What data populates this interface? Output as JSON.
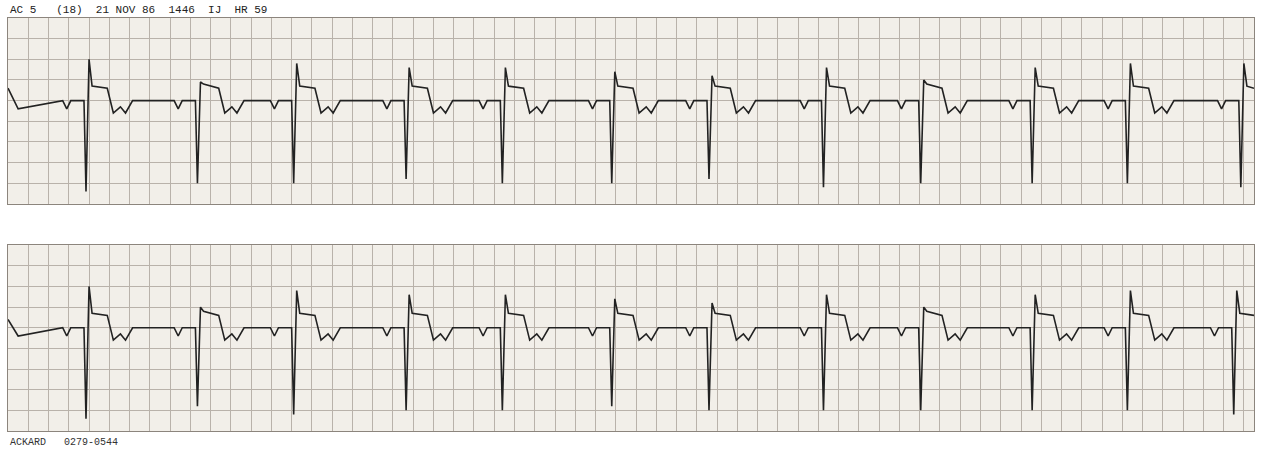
{
  "chart_data": [
    {
      "type": "line",
      "title": "AC 5   (18)  21 NOV 86  1446  IJ  HR 59",
      "color": "#222222",
      "grid": true,
      "tick_labels": false,
      "xlim": [
        0,
        12.3
      ],
      "ylim": [
        -2.5,
        2.0
      ],
      "xticks": [
        0,
        0.2,
        0.4,
        0.6,
        0.8,
        1.0,
        1.2,
        1.4,
        1.6,
        1.8,
        2.0,
        2.2,
        2.4,
        2.6,
        2.8,
        3.0,
        3.2,
        3.4,
        3.6,
        3.8,
        4.0,
        4.2,
        4.4,
        4.6,
        4.8,
        5.0,
        5.2,
        5.4,
        5.6,
        5.8,
        6.0,
        6.2,
        6.4,
        6.6,
        6.8,
        7.0,
        7.2,
        7.4,
        7.6,
        7.8,
        8.0,
        8.2,
        8.4,
        8.6,
        8.8,
        9.0,
        9.2,
        9.4,
        9.6,
        9.8,
        10.0,
        10.2,
        10.4,
        10.6,
        10.8,
        11.0,
        11.2,
        11.4,
        11.6,
        11.8,
        12.0,
        12.2
      ],
      "yticks": [
        -2.5,
        -2.0,
        -1.5,
        -1.0,
        -0.5,
        0,
        0.5,
        1.0,
        1.5,
        2.0
      ],
      "x": [
        0,
        0.1,
        0.54,
        0.58,
        0.62,
        0.75,
        0.77,
        0.8,
        0.83,
        0.98,
        1.04,
        1.11,
        1.16,
        1.23,
        1.64,
        1.68,
        1.72,
        1.85,
        1.87,
        1.9,
        1.93,
        2.08,
        2.14,
        2.21,
        2.26,
        2.33,
        2.59,
        2.63,
        2.67,
        2.8,
        2.82,
        2.85,
        2.88,
        3.03,
        3.09,
        3.16,
        3.21,
        3.28,
        3.7,
        3.74,
        3.78,
        3.91,
        3.93,
        3.96,
        3.99,
        4.14,
        4.2,
        4.27,
        4.32,
        4.39,
        4.65,
        4.69,
        4.73,
        4.86,
        4.88,
        4.91,
        4.94,
        5.09,
        5.15,
        5.22,
        5.27,
        5.34,
        5.73,
        5.77,
        5.81,
        5.94,
        5.96,
        5.99,
        6.02,
        6.17,
        6.23,
        6.3,
        6.35,
        6.42,
        6.69,
        6.73,
        6.77,
        6.9,
        6.92,
        6.95,
        6.98,
        7.13,
        7.19,
        7.26,
        7.31,
        7.38,
        7.82,
        7.86,
        7.9,
        8.03,
        8.05,
        8.08,
        8.11,
        8.26,
        8.32,
        8.39,
        8.44,
        8.51,
        8.78,
        8.82,
        8.86,
        8.99,
        9.01,
        9.04,
        9.07,
        9.22,
        9.28,
        9.35,
        9.4,
        9.47,
        9.88,
        9.92,
        9.96,
        10.09,
        10.11,
        10.14,
        10.17,
        10.32,
        10.38,
        10.45,
        10.5,
        10.57,
        10.82,
        10.86,
        10.9,
        11.03,
        11.05,
        11.08,
        11.11,
        11.26,
        11.32,
        11.39,
        11.44,
        11.51,
        11.94,
        11.98,
        12.02,
        12.15,
        12.17,
        12.2,
        12.23,
        12.3
      ],
      "values": [
        0.3,
        -0.2,
        0,
        -0.2,
        0,
        0,
        -2.2,
        1.0,
        0.35,
        0.3,
        -0.3,
        -0.15,
        -0.3,
        0,
        0,
        -0.2,
        0,
        0,
        -2.0,
        0.45,
        0.4,
        0.3,
        -0.3,
        -0.15,
        -0.3,
        0,
        0,
        -0.2,
        0,
        0,
        -2.0,
        0.9,
        0.35,
        0.3,
        -0.3,
        -0.15,
        -0.3,
        0,
        0,
        -0.2,
        0,
        0,
        -1.9,
        0.8,
        0.35,
        0.3,
        -0.3,
        -0.15,
        -0.3,
        0,
        0,
        -0.2,
        0,
        0,
        -2.0,
        0.8,
        0.35,
        0.3,
        -0.3,
        -0.15,
        -0.3,
        0,
        0,
        -0.2,
        0,
        0,
        -2.0,
        0.7,
        0.35,
        0.3,
        -0.3,
        -0.15,
        -0.3,
        0,
        0,
        -0.2,
        0,
        0,
        -1.9,
        0.6,
        0.35,
        0.3,
        -0.3,
        -0.15,
        -0.3,
        0,
        0,
        -0.2,
        0,
        0,
        -2.1,
        0.8,
        0.35,
        0.3,
        -0.3,
        -0.15,
        -0.3,
        0,
        0,
        -0.2,
        0,
        0,
        -2.0,
        0.5,
        0.4,
        0.3,
        -0.3,
        -0.15,
        -0.3,
        0,
        0,
        -0.2,
        0,
        0,
        -2.0,
        0.8,
        0.35,
        0.3,
        -0.3,
        -0.15,
        -0.3,
        0,
        0,
        -0.2,
        0,
        0,
        -2.0,
        0.9,
        0.35,
        0.3,
        -0.3,
        -0.15,
        -0.3,
        0,
        0,
        -0.2,
        0,
        0,
        -2.1,
        0.9,
        0.35,
        0.3
      ]
    },
    {
      "type": "line",
      "annotations": [
        "ACKARD   0279-0544"
      ],
      "color": "#222222",
      "grid": true,
      "tick_labels": false,
      "xlim": [
        0,
        12.3
      ],
      "ylim": [
        -2.5,
        2.0
      ],
      "xticks": [
        0,
        0.2,
        0.4,
        0.6,
        0.8,
        1.0,
        1.2,
        1.4,
        1.6,
        1.8,
        2.0,
        2.2,
        2.4,
        2.6,
        2.8,
        3.0,
        3.2,
        3.4,
        3.6,
        3.8,
        4.0,
        4.2,
        4.4,
        4.6,
        4.8,
        5.0,
        5.2,
        5.4,
        5.6,
        5.8,
        6.0,
        6.2,
        6.4,
        6.6,
        6.8,
        7.0,
        7.2,
        7.4,
        7.6,
        7.8,
        8.0,
        8.2,
        8.4,
        8.6,
        8.8,
        9.0,
        9.2,
        9.4,
        9.6,
        9.8,
        10.0,
        10.2,
        10.4,
        10.6,
        10.8,
        11.0,
        11.2,
        11.4,
        11.6,
        11.8,
        12.0,
        12.2
      ],
      "yticks": [
        -2.5,
        -2.0,
        -1.5,
        -1.0,
        -0.5,
        0,
        0.5,
        1.0,
        1.5,
        2.0
      ],
      "x": [
        0,
        0.1,
        0.54,
        0.58,
        0.62,
        0.75,
        0.77,
        0.8,
        0.83,
        0.98,
        1.04,
        1.11,
        1.16,
        1.23,
        1.64,
        1.68,
        1.72,
        1.85,
        1.87,
        1.9,
        1.93,
        2.08,
        2.14,
        2.21,
        2.26,
        2.33,
        2.59,
        2.63,
        2.67,
        2.8,
        2.82,
        2.85,
        2.88,
        3.03,
        3.09,
        3.16,
        3.21,
        3.28,
        3.7,
        3.74,
        3.78,
        3.91,
        3.93,
        3.96,
        3.99,
        4.14,
        4.2,
        4.27,
        4.32,
        4.39,
        4.65,
        4.69,
        4.73,
        4.86,
        4.88,
        4.91,
        4.94,
        5.09,
        5.15,
        5.22,
        5.27,
        5.34,
        5.73,
        5.77,
        5.81,
        5.94,
        5.96,
        5.99,
        6.02,
        6.17,
        6.23,
        6.3,
        6.35,
        6.42,
        6.69,
        6.73,
        6.77,
        6.9,
        6.92,
        6.95,
        6.98,
        7.13,
        7.19,
        7.26,
        7.31,
        7.38,
        7.82,
        7.86,
        7.9,
        8.03,
        8.05,
        8.08,
        8.11,
        8.26,
        8.32,
        8.39,
        8.44,
        8.51,
        8.78,
        8.82,
        8.86,
        8.99,
        9.01,
        9.04,
        9.07,
        9.22,
        9.28,
        9.35,
        9.4,
        9.47,
        9.88,
        9.92,
        9.96,
        10.09,
        10.11,
        10.14,
        10.17,
        10.32,
        10.38,
        10.45,
        10.5,
        10.57,
        10.82,
        10.86,
        10.9,
        11.03,
        11.05,
        11.08,
        11.11,
        11.26,
        11.32,
        11.39,
        11.44,
        11.51,
        11.87,
        11.91,
        11.95,
        12.08,
        12.1,
        12.13,
        12.16,
        12.3
      ],
      "values": [
        0.2,
        -0.2,
        0,
        -0.2,
        0,
        0,
        -2.2,
        1.0,
        0.35,
        0.3,
        -0.3,
        -0.15,
        -0.3,
        0,
        0,
        -0.2,
        0,
        0,
        -1.9,
        0.5,
        0.4,
        0.3,
        -0.3,
        -0.15,
        -0.3,
        0,
        0,
        -0.2,
        0,
        0,
        -2.1,
        0.9,
        0.35,
        0.3,
        -0.3,
        -0.15,
        -0.3,
        0,
        0,
        -0.2,
        0,
        0,
        -2.0,
        0.8,
        0.35,
        0.3,
        -0.3,
        -0.15,
        -0.3,
        0,
        0,
        -0.2,
        0,
        0,
        -2.0,
        0.8,
        0.35,
        0.3,
        -0.3,
        -0.15,
        -0.3,
        0,
        0,
        -0.2,
        0,
        0,
        -1.9,
        0.7,
        0.35,
        0.3,
        -0.3,
        -0.15,
        -0.3,
        0,
        0,
        -0.2,
        0,
        0,
        -2.0,
        0.6,
        0.35,
        0.3,
        -0.3,
        -0.15,
        -0.3,
        0,
        0,
        -0.2,
        0,
        0,
        -2.0,
        0.8,
        0.35,
        0.3,
        -0.3,
        -0.15,
        -0.3,
        0,
        0,
        -0.2,
        0,
        0,
        -2.0,
        0.5,
        0.4,
        0.3,
        -0.3,
        -0.15,
        -0.3,
        0,
        0,
        -0.2,
        0,
        0,
        -2.0,
        0.8,
        0.35,
        0.3,
        -0.3,
        -0.15,
        -0.3,
        0,
        0,
        -0.2,
        0,
        0,
        -2.0,
        0.9,
        0.35,
        0.3,
        -0.3,
        -0.15,
        -0.3,
        0,
        0,
        -0.2,
        0,
        0,
        -2.1,
        0.9,
        0.35,
        0.3
      ]
    }
  ]
}
